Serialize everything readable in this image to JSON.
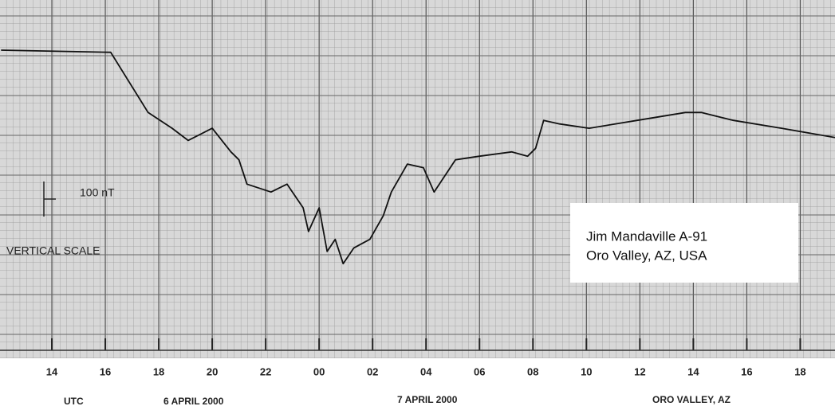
{
  "chart_data": {
    "type": "line",
    "x": [
      12.1,
      16.2,
      17.6,
      18.5,
      19.1,
      20.0,
      20.7,
      21.0,
      21.3,
      22.2,
      22.8,
      23.4,
      23.6,
      24.0,
      24.3,
      24.6,
      24.9,
      25.3,
      25.9,
      26.4,
      26.7,
      27.3,
      27.9,
      28.3,
      29.1,
      30.0,
      31.2,
      31.8,
      32.1,
      32.4,
      33.0,
      34.1,
      35.9,
      37.7,
      38.3,
      39.5,
      41.3,
      43.3
    ],
    "values": [
      0,
      -3,
      -87,
      -109,
      -126,
      -109,
      -142,
      -153,
      -187,
      -198,
      -187,
      -220,
      -253,
      -220,
      -281,
      -264,
      -298,
      -276,
      -264,
      -231,
      -198,
      -159,
      -164,
      -198,
      -153,
      -148,
      -142,
      -148,
      -137,
      -98,
      -103,
      -109,
      -98,
      -87,
      -87,
      -98,
      -109,
      -122
    ],
    "color": "#111111",
    "xlim": [
      12.06,
      43.3
    ],
    "xticks": [
      14,
      16,
      18,
      20,
      22,
      {
        "value": 24,
        "label": "00"
      },
      {
        "value": 26,
        "label": "02"
      },
      {
        "value": 28,
        "label": "04"
      },
      {
        "value": 30,
        "label": "06"
      },
      {
        "value": 32,
        "label": "08"
      },
      {
        "value": 34,
        "label": "10"
      },
      {
        "value": 36,
        "label": "12"
      },
      {
        "value": 38,
        "label": "14"
      },
      {
        "value": 40,
        "label": "16"
      },
      {
        "value": 42,
        "label": "18"
      }
    ],
    "ylim": [
      -410,
      70
    ],
    "x_label": "UTC",
    "day_labels": [
      "6 APRIL 2000",
      "7 APRIL 2000"
    ],
    "location_label": "ORO VALLEY, AZ",
    "scale_label": "100 nT",
    "scale_caption": "VERTICAL SCALE",
    "annotation": [
      "Jim Mandaville A-91",
      "Oro Valley, AZ, USA"
    ],
    "grid": true
  }
}
